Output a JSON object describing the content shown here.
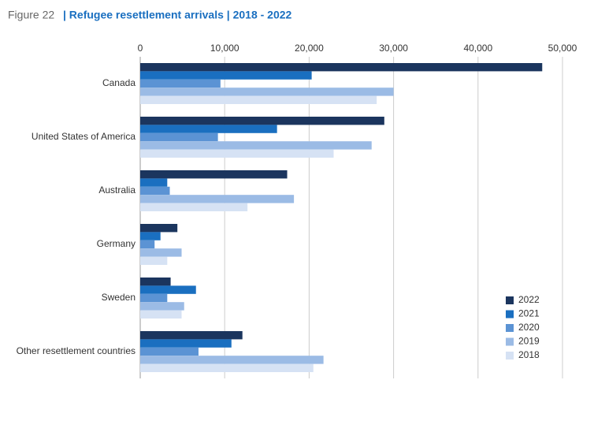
{
  "chart_data": {
    "type": "hbar",
    "figure_label": "Figure 22",
    "title": "| Refugee resettlement arrivals | 2018 - 2022",
    "categories": [
      "Canada",
      "United States of America",
      "Australia",
      "Germany",
      "Sweden",
      "Other resettlement countries"
    ],
    "series": [
      {
        "name": "2022",
        "color": "#1b355e",
        "values": [
          47600,
          28900,
          17400,
          4400,
          3600,
          12100
        ]
      },
      {
        "name": "2021",
        "color": "#1a6fc0",
        "values": [
          20300,
          16200,
          3200,
          2400,
          6600,
          10800
        ]
      },
      {
        "name": "2020",
        "color": "#5b93d4",
        "values": [
          9500,
          9200,
          3500,
          1700,
          3200,
          6900
        ]
      },
      {
        "name": "2019",
        "color": "#9bbbe5",
        "values": [
          30000,
          27400,
          18200,
          4900,
          5200,
          21700
        ]
      },
      {
        "name": "2018",
        "color": "#d6e2f4",
        "values": [
          28000,
          22900,
          12700,
          3200,
          4900,
          20500
        ]
      }
    ],
    "xlim": [
      0,
      50000
    ],
    "xticks": [
      0,
      {
        "value": 10000,
        "label": "10,000"
      },
      {
        "value": 20000,
        "label": "20,000"
      },
      {
        "value": 30000,
        "label": "30,000"
      },
      {
        "value": 40000,
        "label": "40,000"
      },
      {
        "value": 50000,
        "label": "50,000"
      }
    ],
    "grid": true,
    "legend": "bottom-right"
  }
}
